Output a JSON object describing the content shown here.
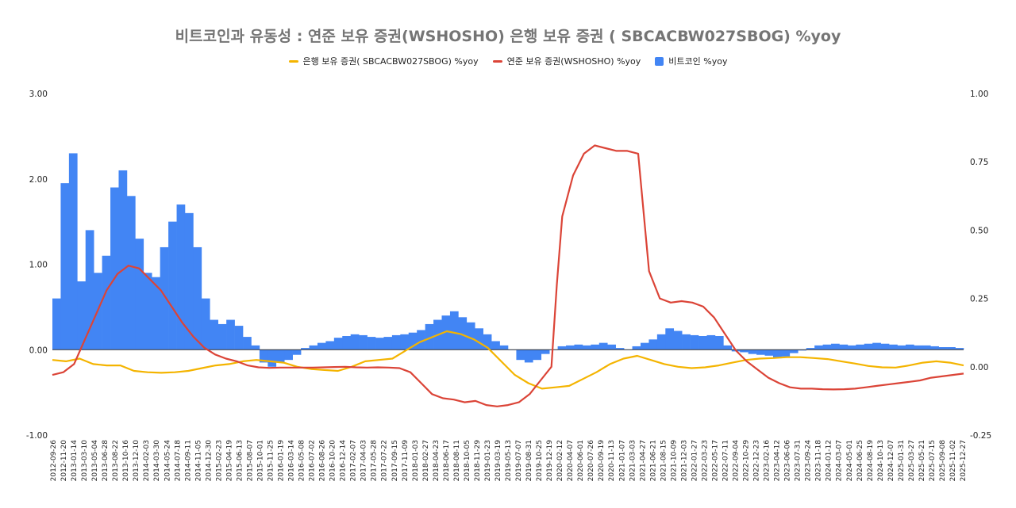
{
  "chart_data": {
    "type": "line+bar",
    "title": "비트코인과 유동성 : 연준 보유 증권(WSHOSHO)  은행 보유 증권 ( SBCACBW027SBOG) %yoy",
    "legend_position": "top",
    "grid": false,
    "y_left": {
      "ticks": [
        "3.00",
        "2.00",
        "1.00",
        "0.00",
        "-1.00"
      ],
      "range": [
        -1.0,
        3.0
      ]
    },
    "y_right": {
      "ticks": [
        "1.00",
        "0.75",
        "0.50",
        "0.25",
        "0.00",
        "-0.25"
      ],
      "range": [
        -0.25,
        1.0
      ]
    },
    "x_labels": [
      "2012-09-26",
      "2012-11-20",
      "2013-01-14",
      "2013-03-10",
      "2013-05-04",
      "2013-06-28",
      "2013-08-22",
      "2013-10-16",
      "2013-12-10",
      "2014-02-03",
      "2014-03-30",
      "2014-05-24",
      "2014-07-18",
      "2014-09-11",
      "2014-11-05",
      "2014-12-30",
      "2015-02-23",
      "2015-04-19",
      "2015-06-13",
      "2015-08-07",
      "2015-10-01",
      "2015-11-25",
      "2016-01-19",
      "2016-03-14",
      "2016-05-08",
      "2016-07-02",
      "2016-08-26",
      "2016-10-20",
      "2016-12-14",
      "2017-02-07",
      "2017-04-03",
      "2017-05-28",
      "2017-07-22",
      "2017-09-15",
      "2017-11-09",
      "2018-01-03",
      "2018-02-27",
      "2018-04-23",
      "2018-06-17",
      "2018-08-11",
      "2018-10-05",
      "2018-11-29",
      "2019-01-23",
      "2019-03-19",
      "2019-05-13",
      "2019-07-07",
      "2019-08-31",
      "2019-10-25",
      "2019-12-19",
      "2020-02-12",
      "2020-04-07",
      "2020-06-01",
      "2020-07-26",
      "2020-09-19",
      "2020-11-13",
      "2021-01-07",
      "2021-03-03",
      "2021-04-27",
      "2021-06-21",
      "2021-08-15",
      "2021-10-09",
      "2021-12-03",
      "2022-01-27",
      "2022-03-23",
      "2022-05-17",
      "2022-07-11",
      "2022-09-04",
      "2022-10-29",
      "2022-12-23",
      "2023-02-16",
      "2023-04-12",
      "2023-06-06",
      "2023-07-31",
      "2023-09-24",
      "2023-11-18",
      "2024-01-12",
      "2024-03-07",
      "2024-05-01",
      "2024-06-25",
      "2024-08-19",
      "2024-10-13",
      "2024-12-07",
      "2025-01-31",
      "2025-03-27",
      "2025-05-21",
      "2025-07-15",
      "2025-09-08",
      "2025-11-02",
      "2025-12-27"
    ],
    "series": [
      {
        "name": "은행 보유 증권( SBCACBW027SBOG) %yoy",
        "axis": "right",
        "type": "line",
        "color": "#F4B400",
        "points": [
          [
            0,
            0.025
          ],
          [
            2,
            0.02
          ],
          [
            4,
            0.03
          ],
          [
            6,
            0.01
          ],
          [
            8,
            0.005
          ],
          [
            10,
            0.005
          ],
          [
            12,
            -0.015
          ],
          [
            14,
            -0.02
          ],
          [
            16,
            -0.022
          ],
          [
            18,
            -0.02
          ],
          [
            20,
            -0.015
          ],
          [
            22,
            -0.005
          ],
          [
            24,
            0.005
          ],
          [
            26,
            0.01
          ],
          [
            28,
            0.02
          ],
          [
            30,
            0.025
          ],
          [
            32,
            0.02
          ],
          [
            34,
            0.015
          ],
          [
            36,
            0.0
          ],
          [
            38,
            -0.008
          ],
          [
            40,
            -0.012
          ],
          [
            42,
            -0.015
          ],
          [
            44,
            0.0
          ],
          [
            46,
            0.02
          ],
          [
            48,
            0.025
          ],
          [
            50,
            0.03
          ],
          [
            52,
            0.06
          ],
          [
            54,
            0.09
          ],
          [
            56,
            0.11
          ],
          [
            58,
            0.13
          ],
          [
            60,
            0.12
          ],
          [
            62,
            0.1
          ],
          [
            64,
            0.07
          ],
          [
            66,
            0.02
          ],
          [
            68,
            -0.03
          ],
          [
            70,
            -0.06
          ],
          [
            72,
            -0.08
          ],
          [
            74,
            -0.075
          ],
          [
            76,
            -0.07
          ],
          [
            78,
            -0.045
          ],
          [
            80,
            -0.02
          ],
          [
            82,
            0.01
          ],
          [
            84,
            0.03
          ],
          [
            86,
            0.04
          ],
          [
            88,
            0.025
          ],
          [
            90,
            0.01
          ],
          [
            92,
            0.0
          ],
          [
            94,
            -0.005
          ],
          [
            96,
            -0.002
          ],
          [
            98,
            0.005
          ],
          [
            100,
            0.015
          ],
          [
            102,
            0.025
          ],
          [
            104,
            0.03
          ],
          [
            106,
            0.032
          ],
          [
            108,
            0.035
          ],
          [
            110,
            0.035
          ],
          [
            112,
            0.032
          ],
          [
            114,
            0.028
          ],
          [
            116,
            0.02
          ],
          [
            118,
            0.012
          ],
          [
            120,
            0.003
          ],
          [
            122,
            -0.002
          ],
          [
            124,
            -0.003
          ],
          [
            126,
            0.005
          ],
          [
            128,
            0.015
          ],
          [
            130,
            0.02
          ],
          [
            132,
            0.015
          ],
          [
            134,
            0.005
          ]
        ]
      },
      {
        "name": "연준 보유 증권(WSHOSHO) %yoy",
        "axis": "right",
        "type": "line",
        "color": "#DB4437",
        "points": [
          [
            0,
            -0.03
          ],
          [
            2,
            -0.02
          ],
          [
            4,
            0.01
          ],
          [
            6,
            0.1
          ],
          [
            8,
            0.19
          ],
          [
            10,
            0.28
          ],
          [
            12,
            0.34
          ],
          [
            14,
            0.37
          ],
          [
            16,
            0.36
          ],
          [
            18,
            0.32
          ],
          [
            20,
            0.28
          ],
          [
            22,
            0.22
          ],
          [
            24,
            0.16
          ],
          [
            26,
            0.11
          ],
          [
            28,
            0.07
          ],
          [
            30,
            0.045
          ],
          [
            32,
            0.03
          ],
          [
            34,
            0.02
          ],
          [
            36,
            0.005
          ],
          [
            38,
            -0.002
          ],
          [
            40,
            -0.004
          ],
          [
            42,
            -0.003
          ],
          [
            44,
            -0.003
          ],
          [
            46,
            -0.003
          ],
          [
            48,
            -0.003
          ],
          [
            50,
            -0.002
          ],
          [
            52,
            -0.001
          ],
          [
            54,
            0.0
          ],
          [
            56,
            -0.002
          ],
          [
            58,
            -0.003
          ],
          [
            60,
            -0.002
          ],
          [
            62,
            -0.003
          ],
          [
            64,
            -0.005
          ],
          [
            66,
            -0.02
          ],
          [
            68,
            -0.06
          ],
          [
            70,
            -0.1
          ],
          [
            72,
            -0.115
          ],
          [
            74,
            -0.12
          ],
          [
            76,
            -0.13
          ],
          [
            78,
            -0.125
          ],
          [
            80,
            -0.14
          ],
          [
            82,
            -0.145
          ],
          [
            84,
            -0.14
          ],
          [
            86,
            -0.13
          ],
          [
            88,
            -0.1
          ],
          [
            90,
            -0.05
          ],
          [
            92,
            0.0
          ],
          [
            93,
            0.3
          ],
          [
            94,
            0.55
          ],
          [
            96,
            0.7
          ],
          [
            98,
            0.78
          ],
          [
            100,
            0.81
          ],
          [
            102,
            0.8
          ],
          [
            104,
            0.79
          ],
          [
            106,
            0.79
          ],
          [
            108,
            0.78
          ],
          [
            110,
            0.35
          ],
          [
            112,
            0.25
          ],
          [
            114,
            0.235
          ],
          [
            116,
            0.24
          ],
          [
            118,
            0.235
          ],
          [
            120,
            0.22
          ],
          [
            122,
            0.18
          ],
          [
            124,
            0.12
          ],
          [
            126,
            0.06
          ],
          [
            128,
            0.02
          ],
          [
            130,
            -0.01
          ],
          [
            132,
            -0.04
          ],
          [
            134,
            -0.06
          ],
          [
            136,
            -0.075
          ],
          [
            138,
            -0.08
          ],
          [
            140,
            -0.08
          ],
          [
            142,
            -0.082
          ],
          [
            144,
            -0.083
          ],
          [
            146,
            -0.082
          ],
          [
            148,
            -0.08
          ],
          [
            150,
            -0.075
          ],
          [
            152,
            -0.07
          ],
          [
            154,
            -0.065
          ],
          [
            156,
            -0.06
          ],
          [
            158,
            -0.055
          ],
          [
            160,
            -0.05
          ],
          [
            162,
            -0.04
          ],
          [
            164,
            -0.035
          ],
          [
            166,
            -0.03
          ],
          [
            168,
            -0.025
          ]
        ]
      },
      {
        "name": "비트코인 %yoy",
        "axis": "left",
        "type": "bar",
        "color": "#4285F4",
        "points": [
          [
            0,
            0.6
          ],
          [
            1,
            1.95
          ],
          [
            2,
            2.3
          ],
          [
            3,
            0.8
          ],
          [
            4,
            1.4
          ],
          [
            5,
            0.9
          ],
          [
            6,
            1.1
          ],
          [
            7,
            1.9
          ],
          [
            8,
            2.1
          ],
          [
            9,
            1.8
          ],
          [
            10,
            1.3
          ],
          [
            11,
            0.9
          ],
          [
            12,
            0.85
          ],
          [
            13,
            1.2
          ],
          [
            14,
            1.5
          ],
          [
            15,
            1.7
          ],
          [
            16,
            1.6
          ],
          [
            17,
            1.2
          ],
          [
            18,
            0.6
          ],
          [
            19,
            0.35
          ],
          [
            20,
            0.3
          ],
          [
            21,
            0.35
          ],
          [
            22,
            0.28
          ],
          [
            23,
            0.15
          ],
          [
            24,
            0.05
          ],
          [
            25,
            -0.15
          ],
          [
            26,
            -0.2
          ],
          [
            27,
            -0.15
          ],
          [
            28,
            -0.12
          ],
          [
            29,
            -0.06
          ],
          [
            30,
            0.02
          ],
          [
            31,
            0.05
          ],
          [
            32,
            0.08
          ],
          [
            33,
            0.1
          ],
          [
            34,
            0.14
          ],
          [
            35,
            0.16
          ],
          [
            36,
            0.18
          ],
          [
            37,
            0.17
          ],
          [
            38,
            0.15
          ],
          [
            39,
            0.14
          ],
          [
            40,
            0.15
          ],
          [
            41,
            0.17
          ],
          [
            42,
            0.18
          ],
          [
            43,
            0.2
          ],
          [
            44,
            0.23
          ],
          [
            45,
            0.3
          ],
          [
            46,
            0.35
          ],
          [
            47,
            0.4
          ],
          [
            48,
            0.45
          ],
          [
            49,
            0.38
          ],
          [
            50,
            0.32
          ],
          [
            51,
            0.25
          ],
          [
            52,
            0.18
          ],
          [
            53,
            0.1
          ],
          [
            54,
            0.05
          ],
          [
            55,
            0.0
          ],
          [
            56,
            -0.12
          ],
          [
            57,
            -0.15
          ],
          [
            58,
            -0.12
          ],
          [
            59,
            -0.05
          ],
          [
            60,
            0.0
          ],
          [
            61,
            0.04
          ],
          [
            62,
            0.05
          ],
          [
            63,
            0.06
          ],
          [
            64,
            0.05
          ],
          [
            65,
            0.06
          ],
          [
            66,
            0.08
          ],
          [
            67,
            0.06
          ],
          [
            68,
            0.02
          ],
          [
            69,
            0.0
          ],
          [
            70,
            0.04
          ],
          [
            71,
            0.08
          ],
          [
            72,
            0.12
          ],
          [
            73,
            0.18
          ],
          [
            74,
            0.25
          ],
          [
            75,
            0.22
          ],
          [
            76,
            0.18
          ],
          [
            77,
            0.17
          ],
          [
            78,
            0.16
          ],
          [
            79,
            0.17
          ],
          [
            80,
            0.16
          ],
          [
            81,
            0.05
          ],
          [
            82,
            -0.02
          ],
          [
            83,
            -0.03
          ],
          [
            84,
            -0.05
          ],
          [
            85,
            -0.06
          ],
          [
            86,
            -0.07
          ],
          [
            87,
            -0.1
          ],
          [
            88,
            -0.08
          ],
          [
            89,
            -0.04
          ],
          [
            90,
            -0.01
          ],
          [
            91,
            0.02
          ],
          [
            92,
            0.05
          ],
          [
            93,
            0.06
          ],
          [
            94,
            0.07
          ],
          [
            95,
            0.06
          ],
          [
            96,
            0.05
          ],
          [
            97,
            0.06
          ],
          [
            98,
            0.07
          ],
          [
            99,
            0.08
          ],
          [
            100,
            0.07
          ],
          [
            101,
            0.06
          ],
          [
            102,
            0.05
          ],
          [
            103,
            0.06
          ],
          [
            104,
            0.05
          ],
          [
            105,
            0.05
          ],
          [
            106,
            0.04
          ],
          [
            107,
            0.03
          ],
          [
            108,
            0.03
          ],
          [
            109,
            0.02
          ]
        ]
      }
    ]
  }
}
